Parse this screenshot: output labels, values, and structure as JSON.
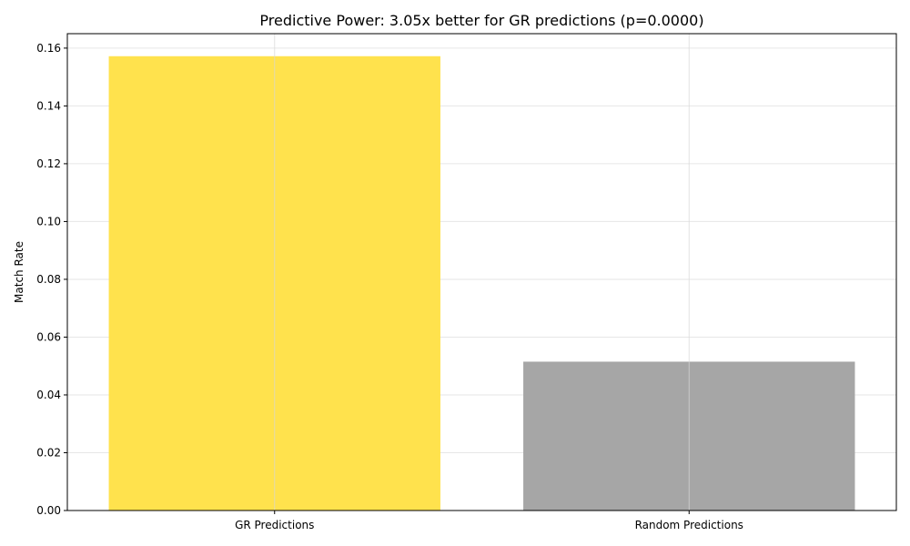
{
  "chart_data": {
    "type": "bar",
    "title": "Predictive Power: 3.05x better for GR predictions (p=0.0000)",
    "xlabel": "",
    "ylabel": "Match Rate",
    "categories": [
      "GR Predictions",
      "Random Predictions"
    ],
    "values": [
      0.1572,
      0.0515
    ],
    "colors": [
      "#ffe24d",
      "#a6a6a6"
    ],
    "ylim": [
      0,
      0.165
    ],
    "yticks": [
      0.0,
      0.02,
      0.04,
      0.06,
      0.08,
      0.1,
      0.12,
      0.14,
      0.16
    ],
    "ytick_labels": [
      "0.00",
      "0.02",
      "0.04",
      "0.06",
      "0.08",
      "0.10",
      "0.12",
      "0.14",
      "0.16"
    ],
    "grid": true,
    "legend": "none"
  }
}
